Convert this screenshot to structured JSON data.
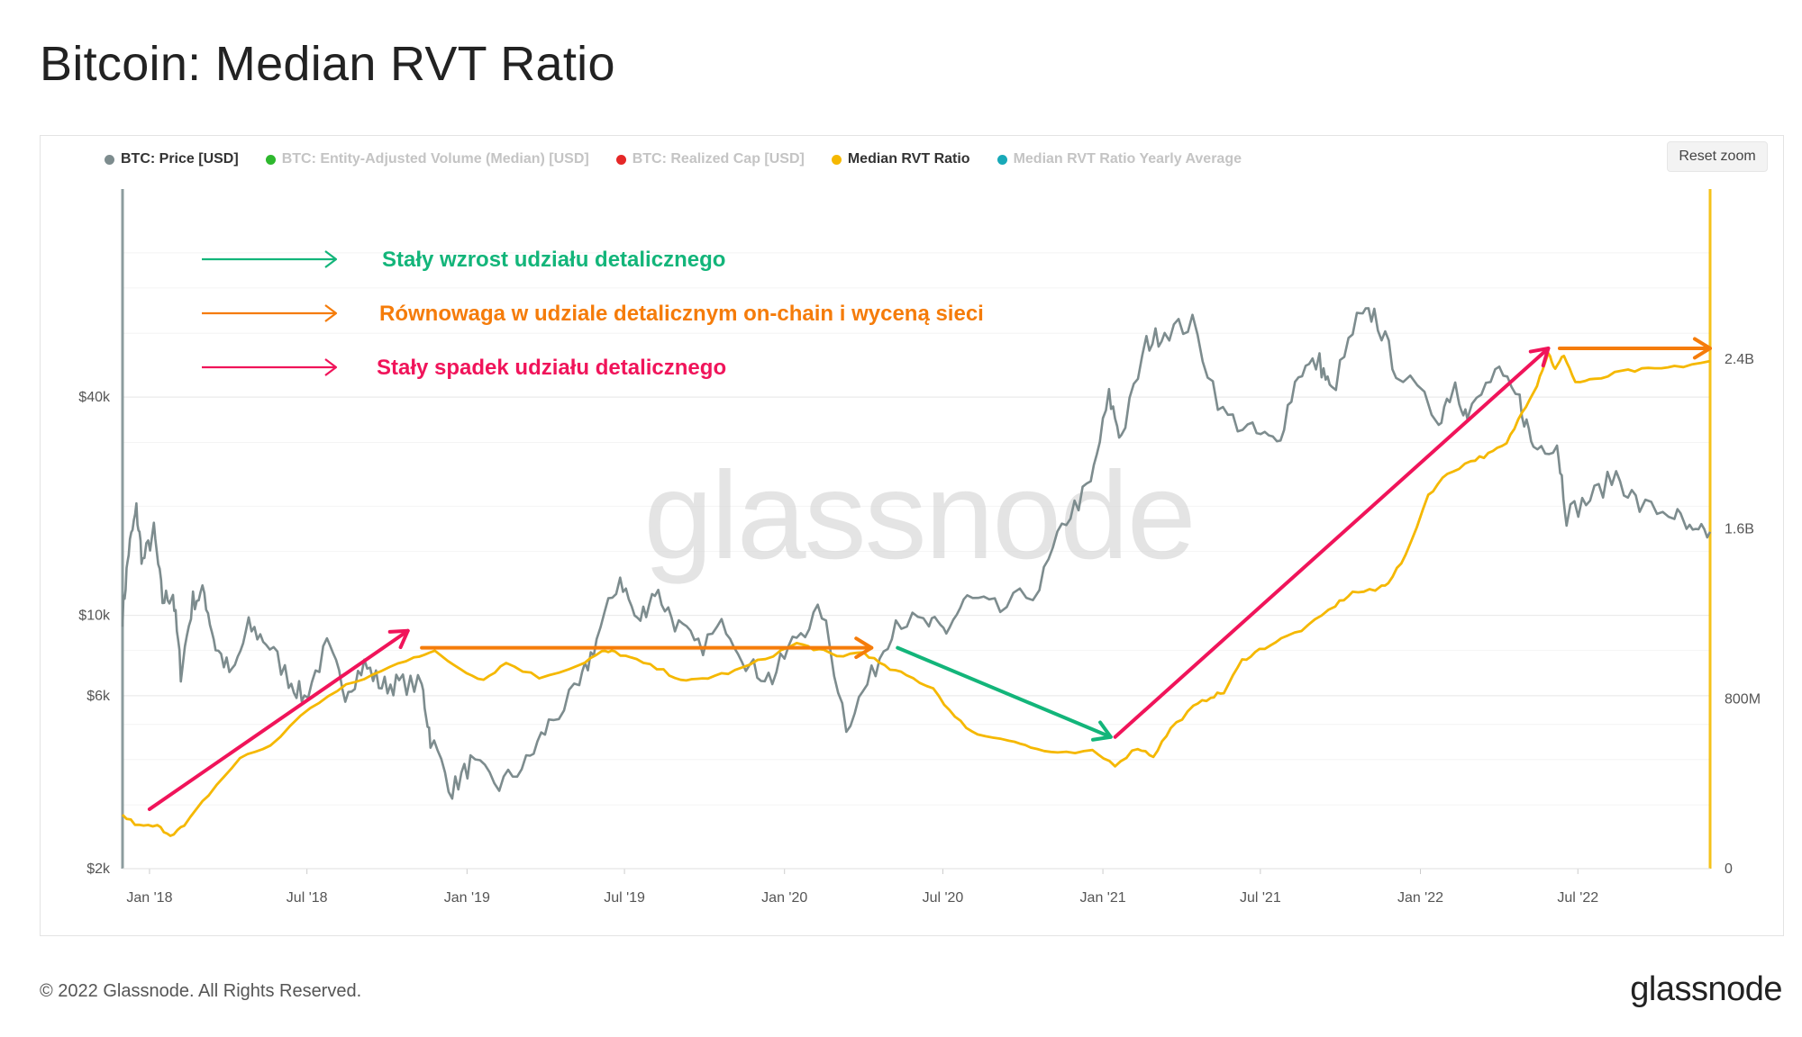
{
  "title": "Bitcoin: Median RVT Ratio",
  "reset_zoom_label": "Reset zoom",
  "copyright": "© 2022 Glassnode. All Rights Reserved.",
  "brand": "glassnode",
  "watermark": "glassnode",
  "legend": [
    {
      "label": "BTC: Price [USD]",
      "color": "#7d8c8e",
      "active": true
    },
    {
      "label": "BTC: Entity-Adjusted Volume (Median) [USD]",
      "color": "#2eb82e",
      "active": false
    },
    {
      "label": "BTC: Realized Cap [USD]",
      "color": "#e52727",
      "active": false
    },
    {
      "label": "Median RVT Ratio",
      "color": "#f5b800",
      "active": true
    },
    {
      "label": "Median RVT Ratio Yearly Average",
      "color": "#18a9b8",
      "active": false
    }
  ],
  "annotations": [
    {
      "text": "Stały wzrost udziału detalicznego",
      "color": "#13b57a"
    },
    {
      "text": "Równowaga w udziale detalicznym on-chain i wyceną sieci",
      "color": "#f57c0a"
    },
    {
      "text": "Stały spadek udziału detalicznego",
      "color": "#f0145a"
    }
  ],
  "chart_data": {
    "type": "line",
    "x_axis": {
      "type": "date",
      "ticks": [
        "Jan '18",
        "Jul '18",
        "Jan '19",
        "Jul '19",
        "Jan '20",
        "Jul '20",
        "Jan '21",
        "Jul '21",
        "Jan '22",
        "Jul '22"
      ],
      "range": [
        "2017-12-01",
        "2022-11-30"
      ]
    },
    "y_left": {
      "type": "log",
      "ticks": [
        "$2k",
        "$6k",
        "$10k",
        "$40k"
      ],
      "tick_values": [
        2000,
        6000,
        10000,
        40000
      ],
      "range": [
        2000,
        150000
      ]
    },
    "y_right": {
      "type": "linear",
      "ticks": [
        "0",
        "800M",
        "1.6B",
        "2.4B"
      ],
      "tick_values": [
        0,
        800000000,
        1600000000,
        2400000000
      ],
      "range": [
        0,
        3200000000
      ]
    },
    "grid": true,
    "legend_position": "top-left",
    "series": [
      {
        "name": "BTC: Price [USD]",
        "axis": "left",
        "color": "#7d8c8e",
        "points": [
          [
            "2017-12-01",
            10000
          ],
          [
            "2017-12-08",
            15000
          ],
          [
            "2017-12-17",
            19500
          ],
          [
            "2017-12-24",
            14000
          ],
          [
            "2018-01-06",
            17000
          ],
          [
            "2018-01-16",
            11000
          ],
          [
            "2018-01-28",
            11500
          ],
          [
            "2018-02-06",
            7000
          ],
          [
            "2018-02-20",
            11000
          ],
          [
            "2018-03-05",
            11500
          ],
          [
            "2018-03-18",
            8200
          ],
          [
            "2018-04-06",
            6800
          ],
          [
            "2018-04-25",
            9300
          ],
          [
            "2018-05-15",
            8500
          ],
          [
            "2018-06-10",
            6700
          ],
          [
            "2018-06-28",
            5900
          ],
          [
            "2018-07-24",
            8200
          ],
          [
            "2018-08-14",
            6200
          ],
          [
            "2018-09-05",
            7300
          ],
          [
            "2018-09-25",
            6400
          ],
          [
            "2018-10-15",
            6500
          ],
          [
            "2018-11-10",
            6400
          ],
          [
            "2018-11-20",
            4600
          ],
          [
            "2018-12-15",
            3300
          ],
          [
            "2019-01-05",
            3900
          ],
          [
            "2019-02-07",
            3400
          ],
          [
            "2019-03-10",
            3900
          ],
          [
            "2019-04-05",
            5000
          ],
          [
            "2019-05-10",
            6300
          ],
          [
            "2019-05-30",
            8600
          ],
          [
            "2019-06-26",
            12800
          ],
          [
            "2019-07-16",
            9500
          ],
          [
            "2019-08-05",
            11800
          ],
          [
            "2019-08-28",
            9600
          ],
          [
            "2019-09-24",
            8100
          ],
          [
            "2019-10-26",
            9500
          ],
          [
            "2019-11-22",
            7200
          ],
          [
            "2019-12-18",
            6700
          ],
          [
            "2020-01-15",
            8800
          ],
          [
            "2020-02-13",
            10300
          ],
          [
            "2020-03-12",
            5000
          ],
          [
            "2020-04-10",
            6800
          ],
          [
            "2020-05-08",
            9800
          ],
          [
            "2020-06-15",
            9400
          ],
          [
            "2020-07-05",
            9100
          ],
          [
            "2020-07-29",
            11100
          ],
          [
            "2020-09-05",
            10300
          ],
          [
            "2020-10-20",
            12000
          ],
          [
            "2020-11-20",
            18500
          ],
          [
            "2020-12-18",
            23000
          ],
          [
            "2021-01-08",
            40000
          ],
          [
            "2021-01-22",
            31000
          ],
          [
            "2021-02-20",
            56000
          ],
          [
            "2021-03-13",
            61000
          ],
          [
            "2021-04-14",
            63500
          ],
          [
            "2021-05-19",
            36000
          ],
          [
            "2021-06-22",
            32000
          ],
          [
            "2021-07-20",
            29800
          ],
          [
            "2021-08-14",
            47000
          ],
          [
            "2021-09-07",
            50000
          ],
          [
            "2021-09-21",
            41000
          ],
          [
            "2021-10-20",
            65000
          ],
          [
            "2021-11-09",
            68000
          ],
          [
            "2021-12-04",
            48000
          ],
          [
            "2022-01-22",
            35000
          ],
          [
            "2022-02-10",
            44000
          ],
          [
            "2022-02-24",
            35000
          ],
          [
            "2022-03-28",
            47000
          ],
          [
            "2022-04-25",
            39000
          ],
          [
            "2022-05-11",
            29000
          ],
          [
            "2022-06-07",
            30000
          ],
          [
            "2022-06-18",
            19000
          ],
          [
            "2022-07-15",
            21000
          ],
          [
            "2022-08-14",
            24500
          ],
          [
            "2022-09-10",
            20000
          ],
          [
            "2022-10-20",
            19100
          ],
          [
            "2022-11-10",
            16500
          ],
          [
            "2022-11-30",
            17000
          ]
        ]
      },
      {
        "name": "Median RVT Ratio",
        "axis": "right",
        "color": "#f5b800",
        "points": [
          [
            "2017-12-01",
            250000000
          ],
          [
            "2017-12-20",
            200000000
          ],
          [
            "2018-01-10",
            200000000
          ],
          [
            "2018-01-25",
            160000000
          ],
          [
            "2018-02-10",
            200000000
          ],
          [
            "2018-03-10",
            350000000
          ],
          [
            "2018-04-15",
            520000000
          ],
          [
            "2018-05-20",
            580000000
          ],
          [
            "2018-07-05",
            760000000
          ],
          [
            "2018-08-15",
            860000000
          ],
          [
            "2018-09-25",
            930000000
          ],
          [
            "2018-11-01",
            1000000000
          ],
          [
            "2018-11-25",
            1020000000
          ],
          [
            "2018-12-25",
            940000000
          ],
          [
            "2019-01-20",
            890000000
          ],
          [
            "2019-02-15",
            970000000
          ],
          [
            "2019-03-25",
            900000000
          ],
          [
            "2019-05-10",
            960000000
          ],
          [
            "2019-06-05",
            1020000000
          ],
          [
            "2019-06-20",
            1020000000
          ],
          [
            "2019-07-15",
            980000000
          ],
          [
            "2019-08-15",
            930000000
          ],
          [
            "2019-09-10",
            880000000
          ],
          [
            "2019-10-05",
            900000000
          ],
          [
            "2019-11-05",
            930000000
          ],
          [
            "2019-12-10",
            990000000
          ],
          [
            "2020-01-15",
            1060000000
          ],
          [
            "2020-02-10",
            1030000000
          ],
          [
            "2020-03-01",
            1000000000
          ],
          [
            "2020-04-01",
            1020000000
          ],
          [
            "2020-04-25",
            950000000
          ],
          [
            "2020-05-20",
            910000000
          ],
          [
            "2020-06-20",
            850000000
          ],
          [
            "2020-07-15",
            710000000
          ],
          [
            "2020-08-10",
            630000000
          ],
          [
            "2020-09-15",
            610000000
          ],
          [
            "2020-10-10",
            570000000
          ],
          [
            "2020-11-10",
            540000000
          ],
          [
            "2020-12-20",
            550000000
          ],
          [
            "2021-01-15",
            490000000
          ],
          [
            "2021-02-10",
            570000000
          ],
          [
            "2021-02-28",
            530000000
          ],
          [
            "2021-03-20",
            660000000
          ],
          [
            "2021-04-15",
            760000000
          ],
          [
            "2021-05-05",
            810000000
          ],
          [
            "2021-05-20",
            830000000
          ],
          [
            "2021-06-10",
            980000000
          ],
          [
            "2021-06-30",
            1030000000
          ],
          [
            "2021-07-25",
            1080000000
          ],
          [
            "2021-08-25",
            1140000000
          ],
          [
            "2021-09-25",
            1240000000
          ],
          [
            "2021-10-15",
            1300000000
          ],
          [
            "2021-11-10",
            1310000000
          ],
          [
            "2021-11-25",
            1350000000
          ],
          [
            "2021-12-15",
            1470000000
          ],
          [
            "2022-01-10",
            1760000000
          ],
          [
            "2022-02-01",
            1860000000
          ],
          [
            "2022-02-28",
            1920000000
          ],
          [
            "2022-03-20",
            1950000000
          ],
          [
            "2022-04-10",
            2000000000
          ],
          [
            "2022-04-28",
            2150000000
          ],
          [
            "2022-05-15",
            2280000000
          ],
          [
            "2022-05-28",
            2430000000
          ],
          [
            "2022-06-05",
            2350000000
          ],
          [
            "2022-06-15",
            2420000000
          ],
          [
            "2022-06-28",
            2290000000
          ],
          [
            "2022-07-20",
            2300000000
          ],
          [
            "2022-08-20",
            2340000000
          ],
          [
            "2022-09-20",
            2350000000
          ],
          [
            "2022-10-20",
            2360000000
          ],
          [
            "2022-11-30",
            2390000000
          ]
        ]
      }
    ],
    "arrows": [
      {
        "color": "#f0145a",
        "from": [
          "2018-01-01",
          280000000
        ],
        "to": [
          "2018-10-25",
          1120000000
        ]
      },
      {
        "color": "#f57c0a",
        "from": [
          "2018-11-10",
          1040000000
        ],
        "to": [
          "2020-04-10",
          1040000000
        ]
      },
      {
        "color": "#13b57a",
        "from": [
          "2020-05-10",
          1040000000
        ],
        "to": [
          "2021-01-10",
          620000000
        ]
      },
      {
        "color": "#f0145a",
        "from": [
          "2021-01-15",
          620000000
        ],
        "to": [
          "2022-05-28",
          2450000000
        ]
      },
      {
        "color": "#f57c0a",
        "from": [
          "2022-06-10",
          2450000000
        ],
        "to": [
          "2022-11-30",
          2450000000
        ]
      }
    ]
  }
}
